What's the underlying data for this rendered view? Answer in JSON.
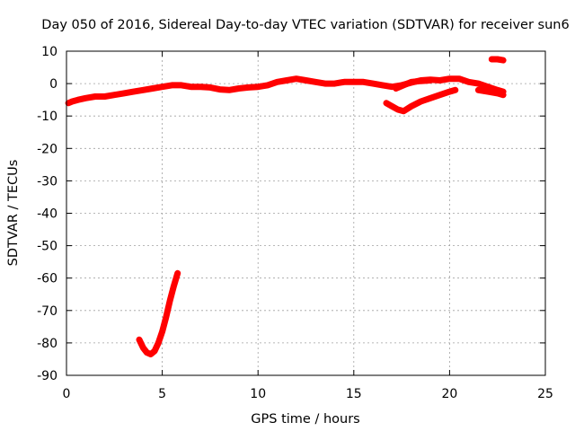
{
  "chart_data": {
    "type": "scatter",
    "title": "Day 050 of 2016, Sidereal Day-to-day VTEC variation (SDTVAR) for receiver sun6",
    "xlabel": "GPS time / hours",
    "ylabel": "SDTVAR / TECUs",
    "xlim": [
      0,
      25
    ],
    "ylim": [
      -90,
      10
    ],
    "xticks": [
      0,
      5,
      10,
      15,
      20,
      25
    ],
    "yticks": [
      10,
      0,
      -10,
      -20,
      -30,
      -40,
      -50,
      -60,
      -70,
      -80,
      -90
    ],
    "grid": true,
    "color": "#ff0000",
    "series": [
      {
        "name": "main-trace",
        "x": [
          0.1,
          0.3,
          0.6,
          1.0,
          1.5,
          2.0,
          2.5,
          3.0,
          3.5,
          4.0,
          4.5,
          5.0,
          5.5,
          6.0,
          6.5,
          7.0,
          7.5,
          8.0,
          8.5,
          9.0,
          9.5,
          10.0,
          10.5,
          11.0,
          11.5,
          12.0,
          12.5,
          13.0,
          13.5,
          14.0,
          14.5,
          15.0,
          15.5,
          16.0,
          16.5,
          17.0,
          17.5,
          18.0,
          18.5,
          19.0,
          19.5,
          20.0,
          20.5,
          21.0,
          21.5,
          22.0,
          22.5,
          22.8
        ],
        "y": [
          -6,
          -5.5,
          -5,
          -4.5,
          -4,
          -4,
          -3.5,
          -3,
          -2.5,
          -2,
          -1.5,
          -1,
          -0.5,
          -0.5,
          -1,
          -1,
          -1.2,
          -1.8,
          -2,
          -1.5,
          -1.2,
          -1,
          -0.5,
          0.5,
          1,
          1.5,
          1,
          0.5,
          0,
          0,
          0.5,
          0.5,
          0.5,
          0,
          -0.5,
          -1,
          -0.5,
          0.3,
          1,
          1.2,
          1,
          1.5,
          1.5,
          0.5,
          0,
          -1,
          -2,
          -2.5
        ]
      },
      {
        "name": "upper-branch",
        "x": [
          17.2,
          17.6,
          18.0,
          18.5,
          19.0
        ],
        "y": [
          -1.5,
          -0.5,
          0.5,
          0.8,
          1.0
        ]
      },
      {
        "name": "lower-branch",
        "x": [
          16.7,
          17.0,
          17.3,
          17.6,
          18.0,
          18.5,
          19.0,
          19.5,
          20.0,
          20.3
        ],
        "y": [
          -6,
          -7,
          -8,
          -8.5,
          -7,
          -5.5,
          -4.5,
          -3.5,
          -2.5,
          -2
        ]
      },
      {
        "name": "late-segment",
        "x": [
          21.5,
          22.0,
          22.5,
          22.8
        ],
        "y": [
          -2,
          -2.5,
          -3,
          -3.5
        ]
      },
      {
        "name": "high-segment",
        "x": [
          22.2,
          22.5,
          22.8
        ],
        "y": [
          7.5,
          7.5,
          7.2
        ]
      },
      {
        "name": "dip-trace",
        "x": [
          3.8,
          4.0,
          4.2,
          4.4,
          4.6,
          4.8,
          5.0,
          5.2,
          5.4,
          5.6,
          5.8
        ],
        "y": [
          -79,
          -81.5,
          -83,
          -83.5,
          -82.5,
          -80,
          -76.5,
          -72,
          -67,
          -62.5,
          -58.5
        ]
      }
    ]
  }
}
